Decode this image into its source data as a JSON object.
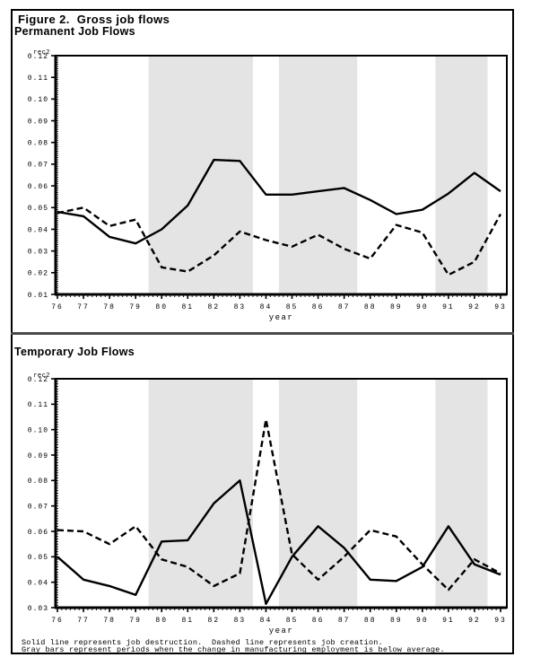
{
  "figure": {
    "title": "Figure 2.  Gross job flows",
    "footnotes": [
      "Solid line represents job destruction.  Dashed line represents job creation.",
      "Gray bars represent periods when the change in manufacturing employment is below average."
    ]
  },
  "chart_data": [
    {
      "type": "line",
      "title": "Permanent Job Flows",
      "xlabel": "year",
      "ylabel": "rec2",
      "x": [
        76,
        77,
        78,
        79,
        80,
        81,
        82,
        83,
        84,
        85,
        86,
        87,
        88,
        89,
        90,
        91,
        92,
        93
      ],
      "xtick_labels": [
        "76",
        "77",
        "78",
        "79",
        "80",
        "81",
        "82",
        "83",
        "84",
        "85",
        "86",
        "87",
        "88",
        "89",
        "90",
        "91",
        "92",
        "93"
      ],
      "ylim": [
        0.01,
        0.12
      ],
      "ytick_step": 0.01,
      "ytick_labels": [
        "0.12",
        "0.11",
        "0.10",
        "0.09",
        "0.08",
        "0.07",
        "0.06",
        "0.05",
        "0.04",
        "0.03",
        "0.02",
        "0.01"
      ],
      "grid": false,
      "legend_position": "none",
      "shade_color": "#e4e4e4",
      "shaded_regions": [
        [
          79.5,
          83.5
        ],
        [
          84.5,
          87.5
        ],
        [
          90.5,
          92.5
        ]
      ],
      "series": [
        {
          "name": "job destruction",
          "style": "solid",
          "values": [
            0.048,
            0.046,
            0.0365,
            0.0335,
            0.04,
            0.051,
            0.072,
            0.0715,
            0.056,
            0.056,
            0.0575,
            0.059,
            0.0535,
            0.047,
            0.049,
            0.0565,
            0.066,
            0.0575
          ]
        },
        {
          "name": "job creation",
          "style": "dashed",
          "values": [
            0.0475,
            0.05,
            0.0415,
            0.0445,
            0.0225,
            0.0205,
            0.028,
            0.039,
            0.035,
            0.032,
            0.0375,
            0.031,
            0.0265,
            0.042,
            0.0385,
            0.019,
            0.025,
            0.047
          ]
        }
      ]
    },
    {
      "type": "line",
      "title": "Temporary Job Flows",
      "xlabel": "year",
      "ylabel": "rec2",
      "x": [
        76,
        77,
        78,
        79,
        80,
        81,
        82,
        83,
        84,
        85,
        86,
        87,
        88,
        89,
        90,
        91,
        92,
        93
      ],
      "xtick_labels": [
        "76",
        "77",
        "78",
        "79",
        "80",
        "81",
        "82",
        "83",
        "84",
        "85",
        "86",
        "87",
        "88",
        "89",
        "90",
        "91",
        "92",
        "93"
      ],
      "ylim": [
        0.03,
        0.12
      ],
      "ytick_step": 0.01,
      "ytick_labels": [
        "0.12",
        "0.11",
        "0.10",
        "0.09",
        "0.08",
        "0.07",
        "0.06",
        "0.05",
        "0.04",
        "0.03"
      ],
      "grid": false,
      "legend_position": "none",
      "shade_color": "#e4e4e4",
      "shaded_regions": [
        [
          79.5,
          83.5
        ],
        [
          84.5,
          87.5
        ],
        [
          90.5,
          92.5
        ]
      ],
      "series": [
        {
          "name": "job destruction",
          "style": "solid",
          "values": [
            0.05,
            0.041,
            0.0385,
            0.035,
            0.056,
            0.0565,
            0.071,
            0.08,
            0.0315,
            0.05,
            0.062,
            0.0535,
            0.041,
            0.0405,
            0.046,
            0.062,
            0.047,
            0.043
          ]
        },
        {
          "name": "job creation",
          "style": "dashed",
          "values": [
            0.0605,
            0.06,
            0.055,
            0.062,
            0.049,
            0.046,
            0.0385,
            0.0435,
            0.104,
            0.051,
            0.041,
            0.05,
            0.0605,
            0.058,
            0.047,
            0.037,
            0.049,
            0.0435
          ]
        }
      ]
    }
  ]
}
